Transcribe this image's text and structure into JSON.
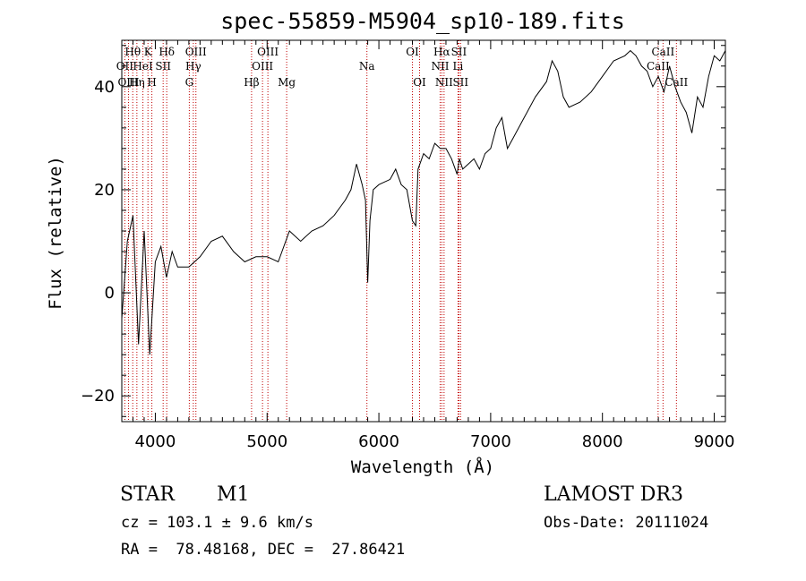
{
  "chart_data": {
    "type": "line",
    "title": "spec-55859-M5904_sp10-189.fits",
    "xlabel": "Wavelength (Å)",
    "ylabel": "Flux (relative)",
    "xlim": [
      3700,
      9100
    ],
    "ylim": [
      -25,
      49
    ],
    "xticks": [
      4000,
      5000,
      6000,
      7000,
      8000,
      9000
    ],
    "yticks": [
      -20,
      0,
      20,
      40
    ],
    "grid": false,
    "series": [
      {
        "name": "flux",
        "x": [
          3700,
          3750,
          3800,
          3850,
          3900,
          3950,
          4000,
          4050,
          4100,
          4150,
          4200,
          4300,
          4400,
          4500,
          4600,
          4700,
          4800,
          4900,
          5000,
          5100,
          5200,
          5300,
          5400,
          5500,
          5600,
          5700,
          5750,
          5800,
          5850,
          5880,
          5900,
          5920,
          5950,
          6000,
          6100,
          6150,
          6200,
          6250,
          6300,
          6330,
          6350,
          6400,
          6450,
          6500,
          6550,
          6600,
          6650,
          6700,
          6720,
          6750,
          6800,
          6850,
          6900,
          6950,
          7000,
          7050,
          7100,
          7150,
          7200,
          7300,
          7400,
          7500,
          7550,
          7600,
          7650,
          7700,
          7800,
          7900,
          8000,
          8100,
          8200,
          8250,
          8300,
          8350,
          8400,
          8450,
          8500,
          8550,
          8600,
          8650,
          8700,
          8750,
          8800,
          8850,
          8900,
          8950,
          9000,
          9050,
          9100
        ],
        "y": [
          -5,
          10,
          15,
          -10,
          12,
          -12,
          6,
          9,
          3,
          8,
          5,
          5,
          7,
          10,
          11,
          8,
          6,
          7,
          7,
          6,
          12,
          10,
          12,
          13,
          15,
          18,
          20,
          25,
          21,
          18,
          2,
          14,
          20,
          21,
          22,
          24,
          21,
          20,
          14,
          13,
          24,
          27,
          26,
          29,
          28,
          28,
          26,
          23,
          26,
          24,
          25,
          26,
          24,
          27,
          28,
          32,
          34,
          28,
          30,
          34,
          38,
          41,
          45,
          43,
          38,
          36,
          37,
          39,
          42,
          45,
          46,
          47,
          46,
          44,
          43,
          40,
          42,
          39,
          44,
          40,
          37,
          35,
          31,
          38,
          36,
          42,
          46,
          45,
          47
        ]
      }
    ],
    "lines": [
      {
        "label": "Hθ",
        "wave": 3798,
        "row": 1
      },
      {
        "label": "OII",
        "wave": 3727,
        "row": 2
      },
      {
        "label": "OIII",
        "wave": 3760,
        "row": 3
      },
      {
        "label": "K",
        "wave": 3934,
        "row": 1
      },
      {
        "label": "HeI",
        "wave": 3889,
        "row": 2
      },
      {
        "label": "Hη",
        "wave": 3835,
        "row": 3
      },
      {
        "label": "SII",
        "wave": 4070,
        "row": 2
      },
      {
        "label": "H",
        "wave": 3969,
        "row": 3
      },
      {
        "label": "Hδ",
        "wave": 4102,
        "row": 1
      },
      {
        "label": "OIII",
        "wave": 4363,
        "row": 1
      },
      {
        "label": "Hγ",
        "wave": 4340,
        "row": 2
      },
      {
        "label": "G",
        "wave": 4304,
        "row": 3
      },
      {
        "label": "Hβ",
        "wave": 4861,
        "row": 3
      },
      {
        "label": "OIII",
        "wave": 5007,
        "row": 1
      },
      {
        "label": "OIII",
        "wave": 4959,
        "row": 2
      },
      {
        "label": "Mg",
        "wave": 5175,
        "row": 3
      },
      {
        "label": "Na",
        "wave": 5893,
        "row": 2
      },
      {
        "label": "OI",
        "wave": 6300,
        "row": 1
      },
      {
        "label": "OI",
        "wave": 6364,
        "row": 3
      },
      {
        "label": "Hα",
        "wave": 6563,
        "row": 1
      },
      {
        "label": "NII",
        "wave": 6548,
        "row": 2
      },
      {
        "label": "NII",
        "wave": 6583,
        "row": 3
      },
      {
        "label": "SII",
        "wave": 6716,
        "row": 1
      },
      {
        "label": "Li",
        "wave": 6708,
        "row": 2
      },
      {
        "label": "SII",
        "wave": 6731,
        "row": 3
      },
      {
        "label": "CaII",
        "wave": 8542,
        "row": 1
      },
      {
        "label": "CaII",
        "wave": 8498,
        "row": 2
      },
      {
        "label": "CaII",
        "wave": 8662,
        "row": 3
      }
    ],
    "line_color": "#c00000"
  },
  "info": {
    "object_class": "STAR",
    "subclass": "M1",
    "survey": "LAMOST DR3",
    "redshift": "cz = 103.1 ± 9.6 km/s",
    "obs_date": "Obs-Date: 20111024",
    "coords": "RA =  78.48168, DEC =  27.86421"
  }
}
